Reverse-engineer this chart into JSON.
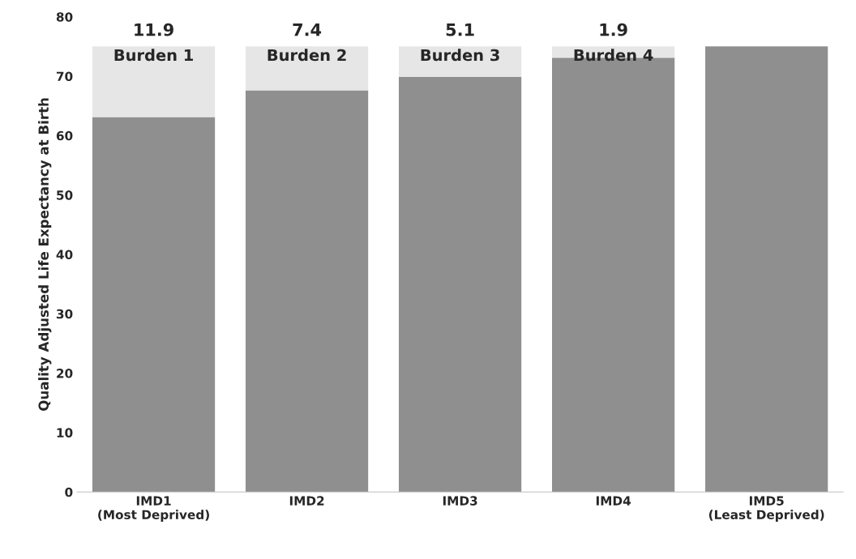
{
  "chart_data": {
    "type": "bar",
    "stacked": true,
    "ylabel": "Quality Adjusted Life Expectancy at Birth",
    "categories": [
      "IMD1\n(Most Deprived)",
      "IMD2",
      "IMD3",
      "IMD4",
      "IMD5\n(Least Deprived)"
    ],
    "series": [
      {
        "color": "#8f8f8f",
        "values": [
          63.1,
          67.6,
          69.9,
          73.1,
          75.0
        ]
      },
      {
        "color": "#e6e6e6",
        "values": [
          11.9,
          7.4,
          5.1,
          1.9,
          null
        ],
        "value_labels": [
          "11.9",
          "7.4",
          "5.1",
          "1.9",
          null
        ]
      }
    ],
    "ylim": [
      0,
      80
    ],
    "yticks": [
      0,
      10,
      20,
      30,
      40,
      50,
      60,
      70,
      80
    ],
    "grid": false,
    "legend": false,
    "annotations": [
      "Burden 1",
      "Burden 2",
      "Burden 3",
      "Burden 4"
    ]
  }
}
